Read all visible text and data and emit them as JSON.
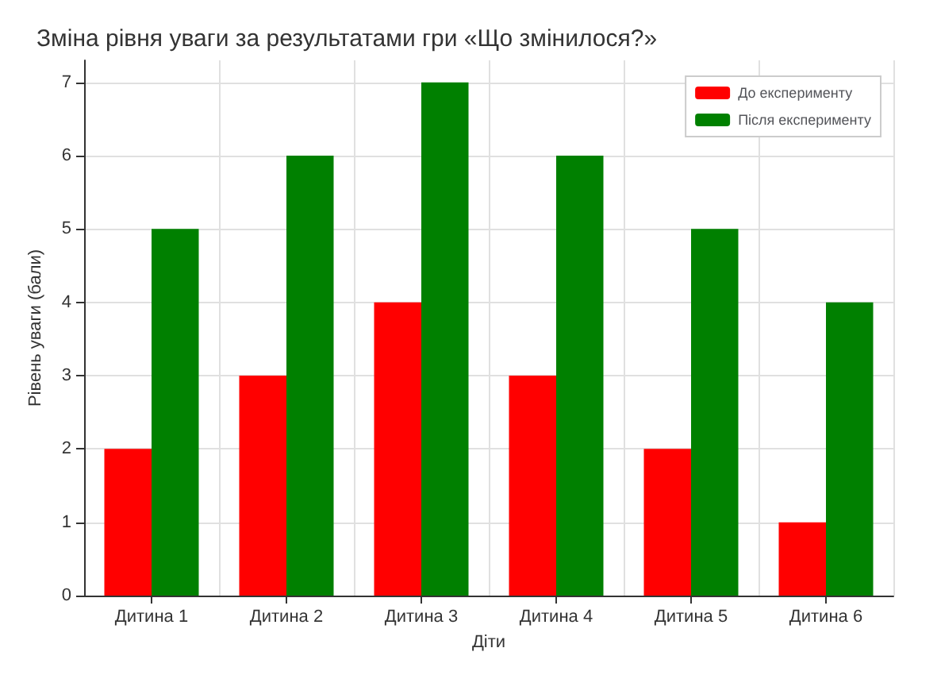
{
  "chart_data": {
    "type": "bar",
    "title": "Зміна рівня уваги за результатами гри «Що змінилося?»",
    "xlabel": "Діти",
    "ylabel": "Рівень уваги (бали)",
    "categories": [
      "Дитина 1",
      "Дитина 2",
      "Дитина 3",
      "Дитина 4",
      "Дитина 5",
      "Дитина 6"
    ],
    "series": [
      {
        "name": "До експерименту",
        "color": "#ff0000",
        "values": [
          2,
          3,
          4,
          3,
          2,
          1
        ]
      },
      {
        "name": "Після експерименту",
        "color": "#008000",
        "values": [
          5,
          6,
          7,
          6,
          5,
          4
        ]
      }
    ],
    "ylim": [
      0,
      7.3
    ],
    "yticks": [
      0,
      1,
      2,
      3,
      4,
      5,
      6,
      7
    ],
    "grid": true,
    "legend": "top right"
  }
}
